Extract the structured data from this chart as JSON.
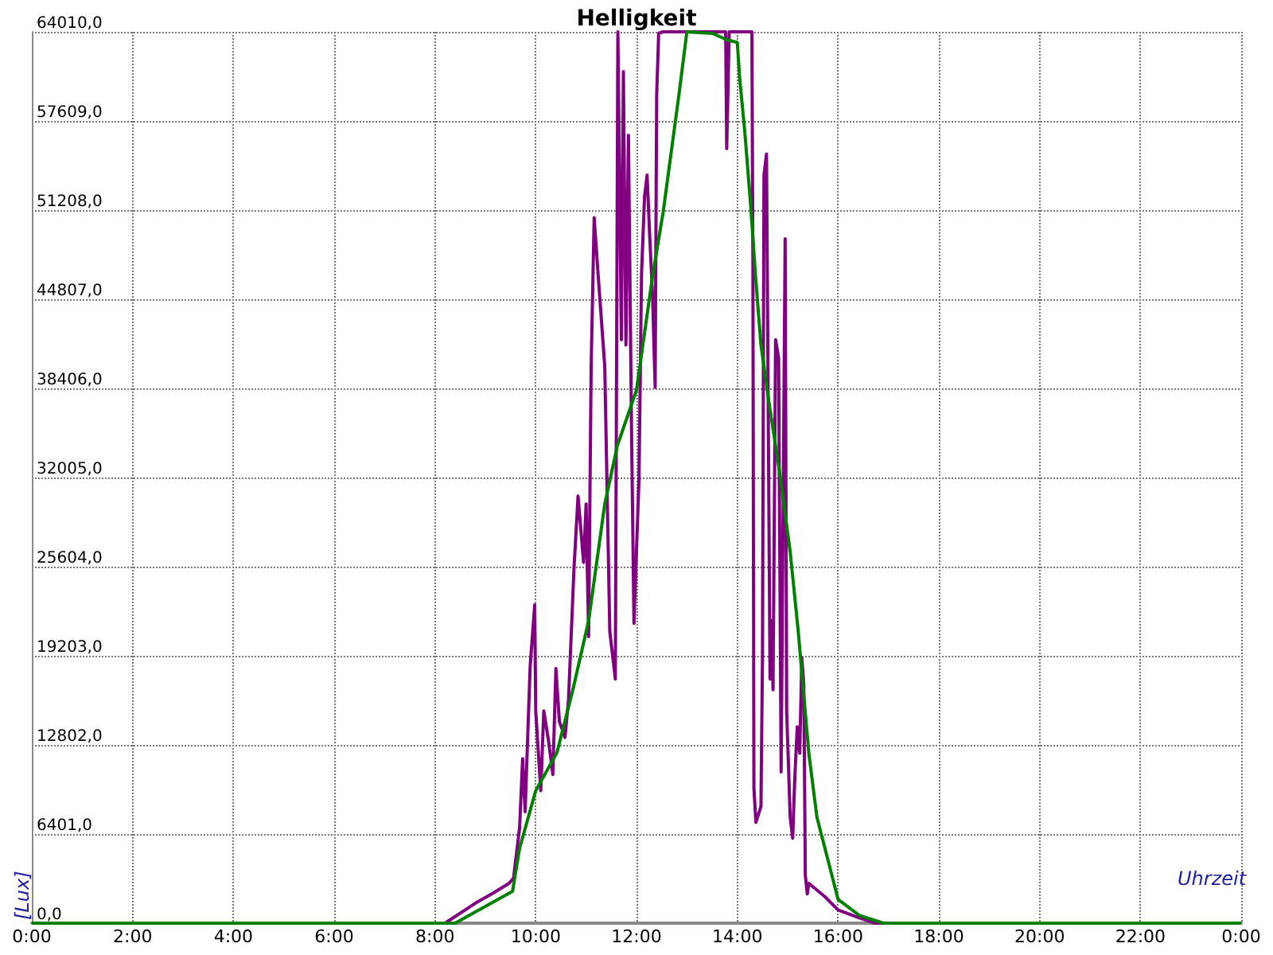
{
  "chart_data": {
    "type": "line",
    "title": "Helligkeit",
    "xlabel": "Uhrzeit",
    "ylabel": "[Lux]",
    "xlim": [
      0,
      24
    ],
    "ylim": [
      0,
      64010
    ],
    "xticks": [
      {
        "value": 0,
        "label": "0:00"
      },
      {
        "value": 2,
        "label": "2:00"
      },
      {
        "value": 4,
        "label": "4:00"
      },
      {
        "value": 6,
        "label": "6:00"
      },
      {
        "value": 8,
        "label": "8:00"
      },
      {
        "value": 10,
        "label": "10:00"
      },
      {
        "value": 12,
        "label": "12:00"
      },
      {
        "value": 14,
        "label": "14:00"
      },
      {
        "value": 16,
        "label": "16:00"
      },
      {
        "value": 18,
        "label": "18:00"
      },
      {
        "value": 20,
        "label": "20:00"
      },
      {
        "value": 22,
        "label": "22:00"
      },
      {
        "value": 24,
        "label": "0:00"
      }
    ],
    "yticks": [
      {
        "value": 0,
        "label": "0,0"
      },
      {
        "value": 6401,
        "label": "6401,0"
      },
      {
        "value": 12802,
        "label": "12802,0"
      },
      {
        "value": 19203,
        "label": "19203,0"
      },
      {
        "value": 25604,
        "label": "25604,0"
      },
      {
        "value": 32005,
        "label": "32005,0"
      },
      {
        "value": 38406,
        "label": "38406,0"
      },
      {
        "value": 44807,
        "label": "44807,0"
      },
      {
        "value": 51208,
        "label": "51208,0"
      },
      {
        "value": 57609,
        "label": "57609,0"
      },
      {
        "value": 64010,
        "label": "64010,0"
      }
    ],
    "grid": true,
    "marker": "none",
    "line_style": "solid",
    "series": [
      {
        "color": "#800080",
        "x": [
          0,
          8.2,
          8.84,
          9.16,
          9.47,
          9.56,
          9.68,
          9.74,
          9.79,
          9.84,
          9.89,
          9.98,
          10.0,
          10.1,
          10.16,
          10.26,
          10.34,
          10.4,
          10.47,
          10.58,
          10.65,
          10.76,
          10.84,
          10.95,
          11.0,
          11.05,
          11.1,
          11.16,
          11.24,
          11.37,
          11.47,
          11.58,
          11.63,
          11.7,
          11.74,
          11.79,
          11.84,
          11.9,
          11.95,
          12.05,
          12.1,
          12.16,
          12.21,
          12.26,
          12.32,
          12.37,
          12.4,
          12.44,
          12.53,
          13.77,
          13.79,
          13.84,
          14.29,
          14.31,
          14.33,
          14.37,
          14.47,
          14.5,
          14.53,
          14.58,
          14.65,
          14.68,
          14.71,
          14.76,
          14.82,
          14.87,
          14.95,
          14.98,
          15.05,
          15.1,
          15.14,
          15.19,
          15.24,
          15.28,
          15.32,
          15.35,
          15.39,
          15.42,
          15.74,
          16.0,
          16.42,
          16.74,
          24
        ],
        "values": [
          0,
          0,
          1520,
          2170,
          2860,
          3240,
          6860,
          11810,
          8000,
          13340,
          18480,
          22860,
          15240,
          9520,
          15240,
          12950,
          10670,
          18290,
          14480,
          13340,
          16000,
          25530,
          30670,
          25910,
          30100,
          20570,
          40000,
          50670,
          46480,
          40000,
          20950,
          17530,
          64010,
          41900,
          61150,
          41520,
          56580,
          35810,
          21530,
          32000,
          46670,
          52200,
          53720,
          49530,
          44950,
          38480,
          59430,
          63910,
          64010,
          64010,
          55620,
          64010,
          64010,
          47630,
          9720,
          7240,
          8380,
          19050,
          53720,
          55240,
          17530,
          21720,
          16760,
          41900,
          40570,
          10860,
          49150,
          15240,
          7620,
          6100,
          10290,
          14100,
          12200,
          19050,
          17150,
          3430,
          2100,
          2860,
          1900,
          950,
          380,
          0,
          0
        ]
      },
      {
        "color": "#008000",
        "x": [
          0,
          8.4,
          9.54,
          9.68,
          10.0,
          10.42,
          10.74,
          11.05,
          11.37,
          11.62,
          12.0,
          12.32,
          12.53,
          12.84,
          13.0,
          13.51,
          13.79,
          14.0,
          14.05,
          14.15,
          14.26,
          14.37,
          14.47,
          14.63,
          14.84,
          15.05,
          15.21,
          15.42,
          15.58,
          16.0,
          16.42,
          16.9,
          24
        ],
        "values": [
          0,
          0,
          2286,
          5370,
          9520,
          12230,
          16800,
          21720,
          30100,
          34290,
          38290,
          46500,
          51090,
          59440,
          64010,
          63900,
          63440,
          63250,
          60580,
          56800,
          51800,
          46100,
          41520,
          37370,
          32380,
          26670,
          20950,
          12200,
          7620,
          1710,
          570,
          0,
          0
        ]
      }
    ]
  }
}
